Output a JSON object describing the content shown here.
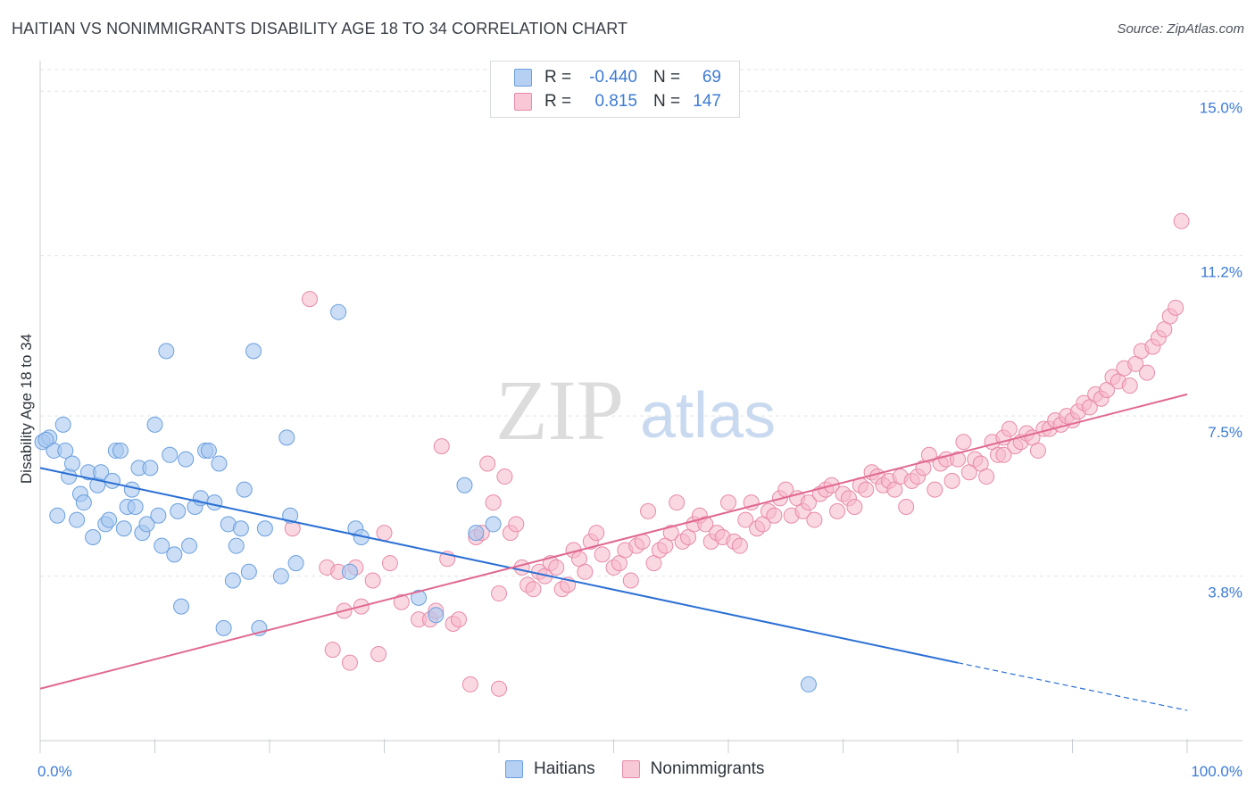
{
  "title": "HAITIAN VS NONIMMIGRANTS DISABILITY AGE 18 TO 34 CORRELATION CHART",
  "source": "Source: ZipAtlas.com",
  "watermark": {
    "part1": "ZIP",
    "part2": "atlas"
  },
  "legend": {
    "rows": [
      {
        "r_label": "R =",
        "r_value": "-0.440",
        "n_label": "N =",
        "n_value": "69",
        "color": "#a8c8f0"
      },
      {
        "r_label": "R =",
        "r_value": "0.815",
        "n_label": "N =",
        "n_value": "147",
        "color": "#f5b8cb"
      }
    ]
  },
  "bottom_legend": {
    "haitians": "Haitians",
    "nonimmigrants": "Nonimmigrants"
  },
  "chart_data": {
    "type": "scatter",
    "title": "HAITIAN VS NONIMMIGRANTS DISABILITY AGE 18 TO 34 CORRELATION CHART",
    "xlabel": "",
    "ylabel": "Disability Age 18 to 34",
    "xlim": [
      0,
      100
    ],
    "ylim": [
      0,
      15.5
    ],
    "x_tick_labels": [
      "0.0%",
      "100.0%"
    ],
    "y_ticks": [
      3.8,
      7.5,
      11.2,
      15.0
    ],
    "y_tick_labels": [
      "3.8%",
      "7.5%",
      "11.2%",
      "15.0%"
    ],
    "grid": true,
    "legend_position": "top-center",
    "colors": {
      "haitians_fill": "#a8c8f0",
      "haitians_stroke": "#6a9fde",
      "haitians_line": "#2a6fd4",
      "nonimmigrants_fill": "#f5b8cb",
      "nonimmigrants_stroke": "#e88aa8",
      "nonimmigrants_line": "#e06890",
      "tick_label": "#3d7bd4"
    },
    "series": [
      {
        "name": "Haitians",
        "r": -0.44,
        "n": 69,
        "trend": {
          "x": [
            0,
            80
          ],
          "y": [
            6.3,
            1.8
          ],
          "dashed_to": [
            100,
            0.7
          ]
        },
        "points": [
          [
            0.2,
            6.9
          ],
          [
            0.8,
            7.0
          ],
          [
            1.2,
            6.7
          ],
          [
            2.0,
            7.3
          ],
          [
            1.5,
            5.2
          ],
          [
            2.2,
            6.7
          ],
          [
            2.5,
            6.1
          ],
          [
            2.8,
            6.4
          ],
          [
            3.2,
            5.1
          ],
          [
            3.5,
            5.7
          ],
          [
            3.8,
            5.5
          ],
          [
            4.2,
            6.2
          ],
          [
            4.6,
            4.7
          ],
          [
            5.0,
            5.9
          ],
          [
            5.3,
            6.2
          ],
          [
            5.7,
            5.0
          ],
          [
            6.0,
            5.1
          ],
          [
            6.3,
            6.0
          ],
          [
            6.6,
            6.7
          ],
          [
            7.0,
            6.7
          ],
          [
            7.3,
            4.9
          ],
          [
            7.6,
            5.4
          ],
          [
            8.0,
            5.8
          ],
          [
            8.3,
            5.4
          ],
          [
            8.6,
            6.3
          ],
          [
            8.9,
            4.8
          ],
          [
            9.3,
            5.0
          ],
          [
            9.6,
            6.3
          ],
          [
            10.0,
            7.3
          ],
          [
            10.3,
            5.2
          ],
          [
            10.6,
            4.5
          ],
          [
            11.0,
            9.0
          ],
          [
            11.3,
            6.6
          ],
          [
            11.7,
            4.3
          ],
          [
            12.0,
            5.3
          ],
          [
            12.3,
            3.1
          ],
          [
            12.7,
            6.5
          ],
          [
            13.0,
            4.5
          ],
          [
            13.5,
            5.4
          ],
          [
            14.0,
            5.6
          ],
          [
            14.4,
            6.7
          ],
          [
            14.7,
            6.7
          ],
          [
            15.2,
            5.5
          ],
          [
            15.6,
            6.4
          ],
          [
            16.0,
            2.6
          ],
          [
            16.4,
            5.0
          ],
          [
            16.8,
            3.7
          ],
          [
            17.1,
            4.5
          ],
          [
            17.5,
            4.9
          ],
          [
            17.8,
            5.8
          ],
          [
            18.2,
            3.9
          ],
          [
            18.6,
            9.0
          ],
          [
            19.1,
            2.6
          ],
          [
            19.6,
            4.9
          ],
          [
            21.0,
            3.8
          ],
          [
            21.5,
            7.0
          ],
          [
            21.8,
            5.2
          ],
          [
            22.3,
            4.1
          ],
          [
            26.0,
            9.9
          ],
          [
            27.0,
            3.9
          ],
          [
            27.5,
            4.9
          ],
          [
            28.0,
            4.7
          ],
          [
            33.0,
            3.3
          ],
          [
            34.5,
            2.9
          ],
          [
            37.0,
            5.9
          ],
          [
            38.0,
            4.8
          ],
          [
            39.5,
            5.0
          ],
          [
            67.0,
            1.3
          ],
          [
            0.5,
            6.95
          ]
        ]
      },
      {
        "name": "Nonimmigrants",
        "r": 0.815,
        "n": 147,
        "trend": {
          "x": [
            0,
            100
          ],
          "y": [
            1.2,
            8.0
          ]
        },
        "points": [
          [
            23.5,
            10.2
          ],
          [
            22.0,
            4.9
          ],
          [
            25.0,
            4.0
          ],
          [
            25.5,
            2.1
          ],
          [
            26.0,
            3.9
          ],
          [
            26.5,
            3.0
          ],
          [
            27.0,
            1.8
          ],
          [
            27.5,
            4.0
          ],
          [
            28.0,
            3.1
          ],
          [
            29.0,
            3.7
          ],
          [
            29.5,
            2.0
          ],
          [
            30.0,
            4.8
          ],
          [
            30.5,
            4.1
          ],
          [
            31.5,
            3.2
          ],
          [
            33.0,
            2.8
          ],
          [
            34.0,
            2.8
          ],
          [
            34.5,
            3.0
          ],
          [
            35.0,
            6.8
          ],
          [
            35.5,
            4.2
          ],
          [
            36.0,
            2.7
          ],
          [
            36.5,
            2.8
          ],
          [
            37.5,
            1.3
          ],
          [
            38.0,
            4.7
          ],
          [
            38.5,
            4.8
          ],
          [
            39.0,
            6.4
          ],
          [
            39.5,
            5.5
          ],
          [
            40.0,
            3.4
          ],
          [
            40.0,
            1.2
          ],
          [
            40.5,
            6.1
          ],
          [
            41.0,
            4.8
          ],
          [
            41.5,
            5.0
          ],
          [
            42.0,
            4.0
          ],
          [
            42.5,
            3.6
          ],
          [
            43.0,
            3.5
          ],
          [
            43.5,
            3.9
          ],
          [
            44.0,
            3.8
          ],
          [
            44.5,
            4.1
          ],
          [
            45.0,
            4.0
          ],
          [
            45.5,
            3.5
          ],
          [
            46.0,
            3.6
          ],
          [
            46.5,
            4.4
          ],
          [
            47.0,
            4.2
          ],
          [
            47.5,
            3.9
          ],
          [
            48.0,
            4.6
          ],
          [
            48.5,
            4.8
          ],
          [
            49.0,
            4.3
          ],
          [
            50.0,
            4.0
          ],
          [
            50.5,
            4.1
          ],
          [
            51.0,
            4.4
          ],
          [
            51.5,
            3.7
          ],
          [
            52.0,
            4.5
          ],
          [
            52.5,
            4.6
          ],
          [
            53.0,
            5.3
          ],
          [
            53.5,
            4.1
          ],
          [
            54.0,
            4.4
          ],
          [
            54.5,
            4.5
          ],
          [
            55.0,
            4.8
          ],
          [
            55.5,
            5.5
          ],
          [
            56.0,
            4.6
          ],
          [
            56.5,
            4.7
          ],
          [
            57.0,
            5.0
          ],
          [
            57.5,
            5.2
          ],
          [
            58.0,
            5.0
          ],
          [
            58.5,
            4.6
          ],
          [
            59.0,
            4.8
          ],
          [
            59.5,
            4.7
          ],
          [
            60.0,
            5.5
          ],
          [
            60.5,
            4.6
          ],
          [
            61.0,
            4.5
          ],
          [
            61.5,
            5.1
          ],
          [
            62.0,
            5.5
          ],
          [
            62.5,
            4.9
          ],
          [
            63.0,
            5.0
          ],
          [
            63.5,
            5.3
          ],
          [
            64.0,
            5.2
          ],
          [
            64.5,
            5.6
          ],
          [
            65.0,
            5.8
          ],
          [
            65.5,
            5.2
          ],
          [
            66.0,
            5.6
          ],
          [
            66.5,
            5.3
          ],
          [
            67.0,
            5.5
          ],
          [
            67.5,
            5.1
          ],
          [
            68.0,
            5.7
          ],
          [
            68.5,
            5.8
          ],
          [
            69.0,
            5.9
          ],
          [
            69.5,
            5.3
          ],
          [
            70.0,
            5.7
          ],
          [
            70.5,
            5.6
          ],
          [
            71.0,
            5.4
          ],
          [
            71.5,
            5.9
          ],
          [
            72.0,
            5.8
          ],
          [
            72.5,
            6.2
          ],
          [
            73.0,
            6.1
          ],
          [
            73.5,
            5.9
          ],
          [
            74.0,
            6.0
          ],
          [
            74.5,
            5.8
          ],
          [
            75.0,
            6.1
          ],
          [
            75.5,
            5.4
          ],
          [
            76.0,
            6.0
          ],
          [
            76.5,
            6.1
          ],
          [
            77.0,
            6.3
          ],
          [
            77.5,
            6.6
          ],
          [
            78.0,
            5.8
          ],
          [
            78.5,
            6.4
          ],
          [
            79.0,
            6.5
          ],
          [
            79.5,
            6.0
          ],
          [
            80.0,
            6.5
          ],
          [
            80.5,
            6.9
          ],
          [
            81.0,
            6.2
          ],
          [
            81.5,
            6.5
          ],
          [
            82.0,
            6.4
          ],
          [
            82.5,
            6.1
          ],
          [
            83.0,
            6.9
          ],
          [
            83.5,
            6.6
          ],
          [
            84.0,
            7.0
          ],
          [
            84.5,
            7.2
          ],
          [
            85.0,
            6.8
          ],
          [
            85.5,
            6.9
          ],
          [
            86.0,
            7.1
          ],
          [
            86.5,
            7.0
          ],
          [
            87.0,
            6.7
          ],
          [
            87.5,
            7.2
          ],
          [
            88.0,
            7.2
          ],
          [
            88.5,
            7.4
          ],
          [
            89.0,
            7.3
          ],
          [
            89.5,
            7.5
          ],
          [
            90.0,
            7.4
          ],
          [
            90.5,
            7.6
          ],
          [
            91.0,
            7.8
          ],
          [
            91.5,
            7.7
          ],
          [
            92.0,
            8.0
          ],
          [
            92.5,
            7.9
          ],
          [
            93.0,
            8.1
          ],
          [
            93.5,
            8.4
          ],
          [
            94.0,
            8.3
          ],
          [
            94.5,
            8.6
          ],
          [
            95.0,
            8.2
          ],
          [
            95.5,
            8.7
          ],
          [
            96.0,
            9.0
          ],
          [
            96.5,
            8.5
          ],
          [
            97.0,
            9.1
          ],
          [
            97.5,
            9.3
          ],
          [
            98.0,
            9.5
          ],
          [
            98.5,
            9.8
          ],
          [
            99.0,
            10.0
          ],
          [
            99.5,
            12.0
          ],
          [
            84.0,
            6.6
          ]
        ]
      }
    ]
  }
}
